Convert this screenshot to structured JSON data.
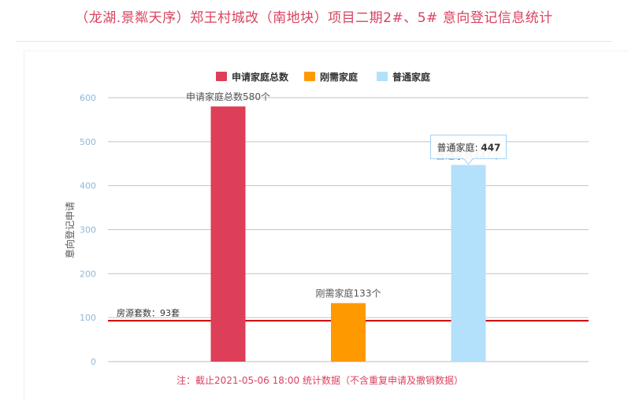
{
  "page": {
    "title": "（龙湖.景粼天序）郑王村城改（南地块）项目二期2#、5# 意向登记信息统计"
  },
  "chart_data": {
    "type": "bar",
    "categories": [
      "申请家庭总数",
      "刚需家庭",
      "普通家庭"
    ],
    "series": [
      {
        "name": "申请家庭总数",
        "color": "#dc3f57",
        "value": 580,
        "label": "申请家庭总数580个"
      },
      {
        "name": "刚需家庭",
        "color": "#ff9900",
        "value": 133,
        "label": "刚需家庭133个"
      },
      {
        "name": "普通家庭",
        "color": "#b3e0fb",
        "value": 447,
        "label": "普通家庭447个"
      }
    ],
    "ylabel": "意向登记申请",
    "ylim": [
      0,
      600
    ],
    "yticks": [
      0,
      100,
      200,
      300,
      400,
      500,
      600
    ],
    "grid": true,
    "legend_position": "top-center",
    "reference_line": {
      "value": 93,
      "label": "房源套数：93套",
      "color": "#cc0000"
    },
    "tooltip": {
      "series": "普通家庭",
      "label": "普通家庭: ",
      "value": "447"
    },
    "note": "注：截止2021-05-06 18:00 统计数据（不含重复申请及撤销数据）",
    "tick_color": "#8fb8d8",
    "axis_title_color": "#555555",
    "note_color": "#d9425f"
  }
}
